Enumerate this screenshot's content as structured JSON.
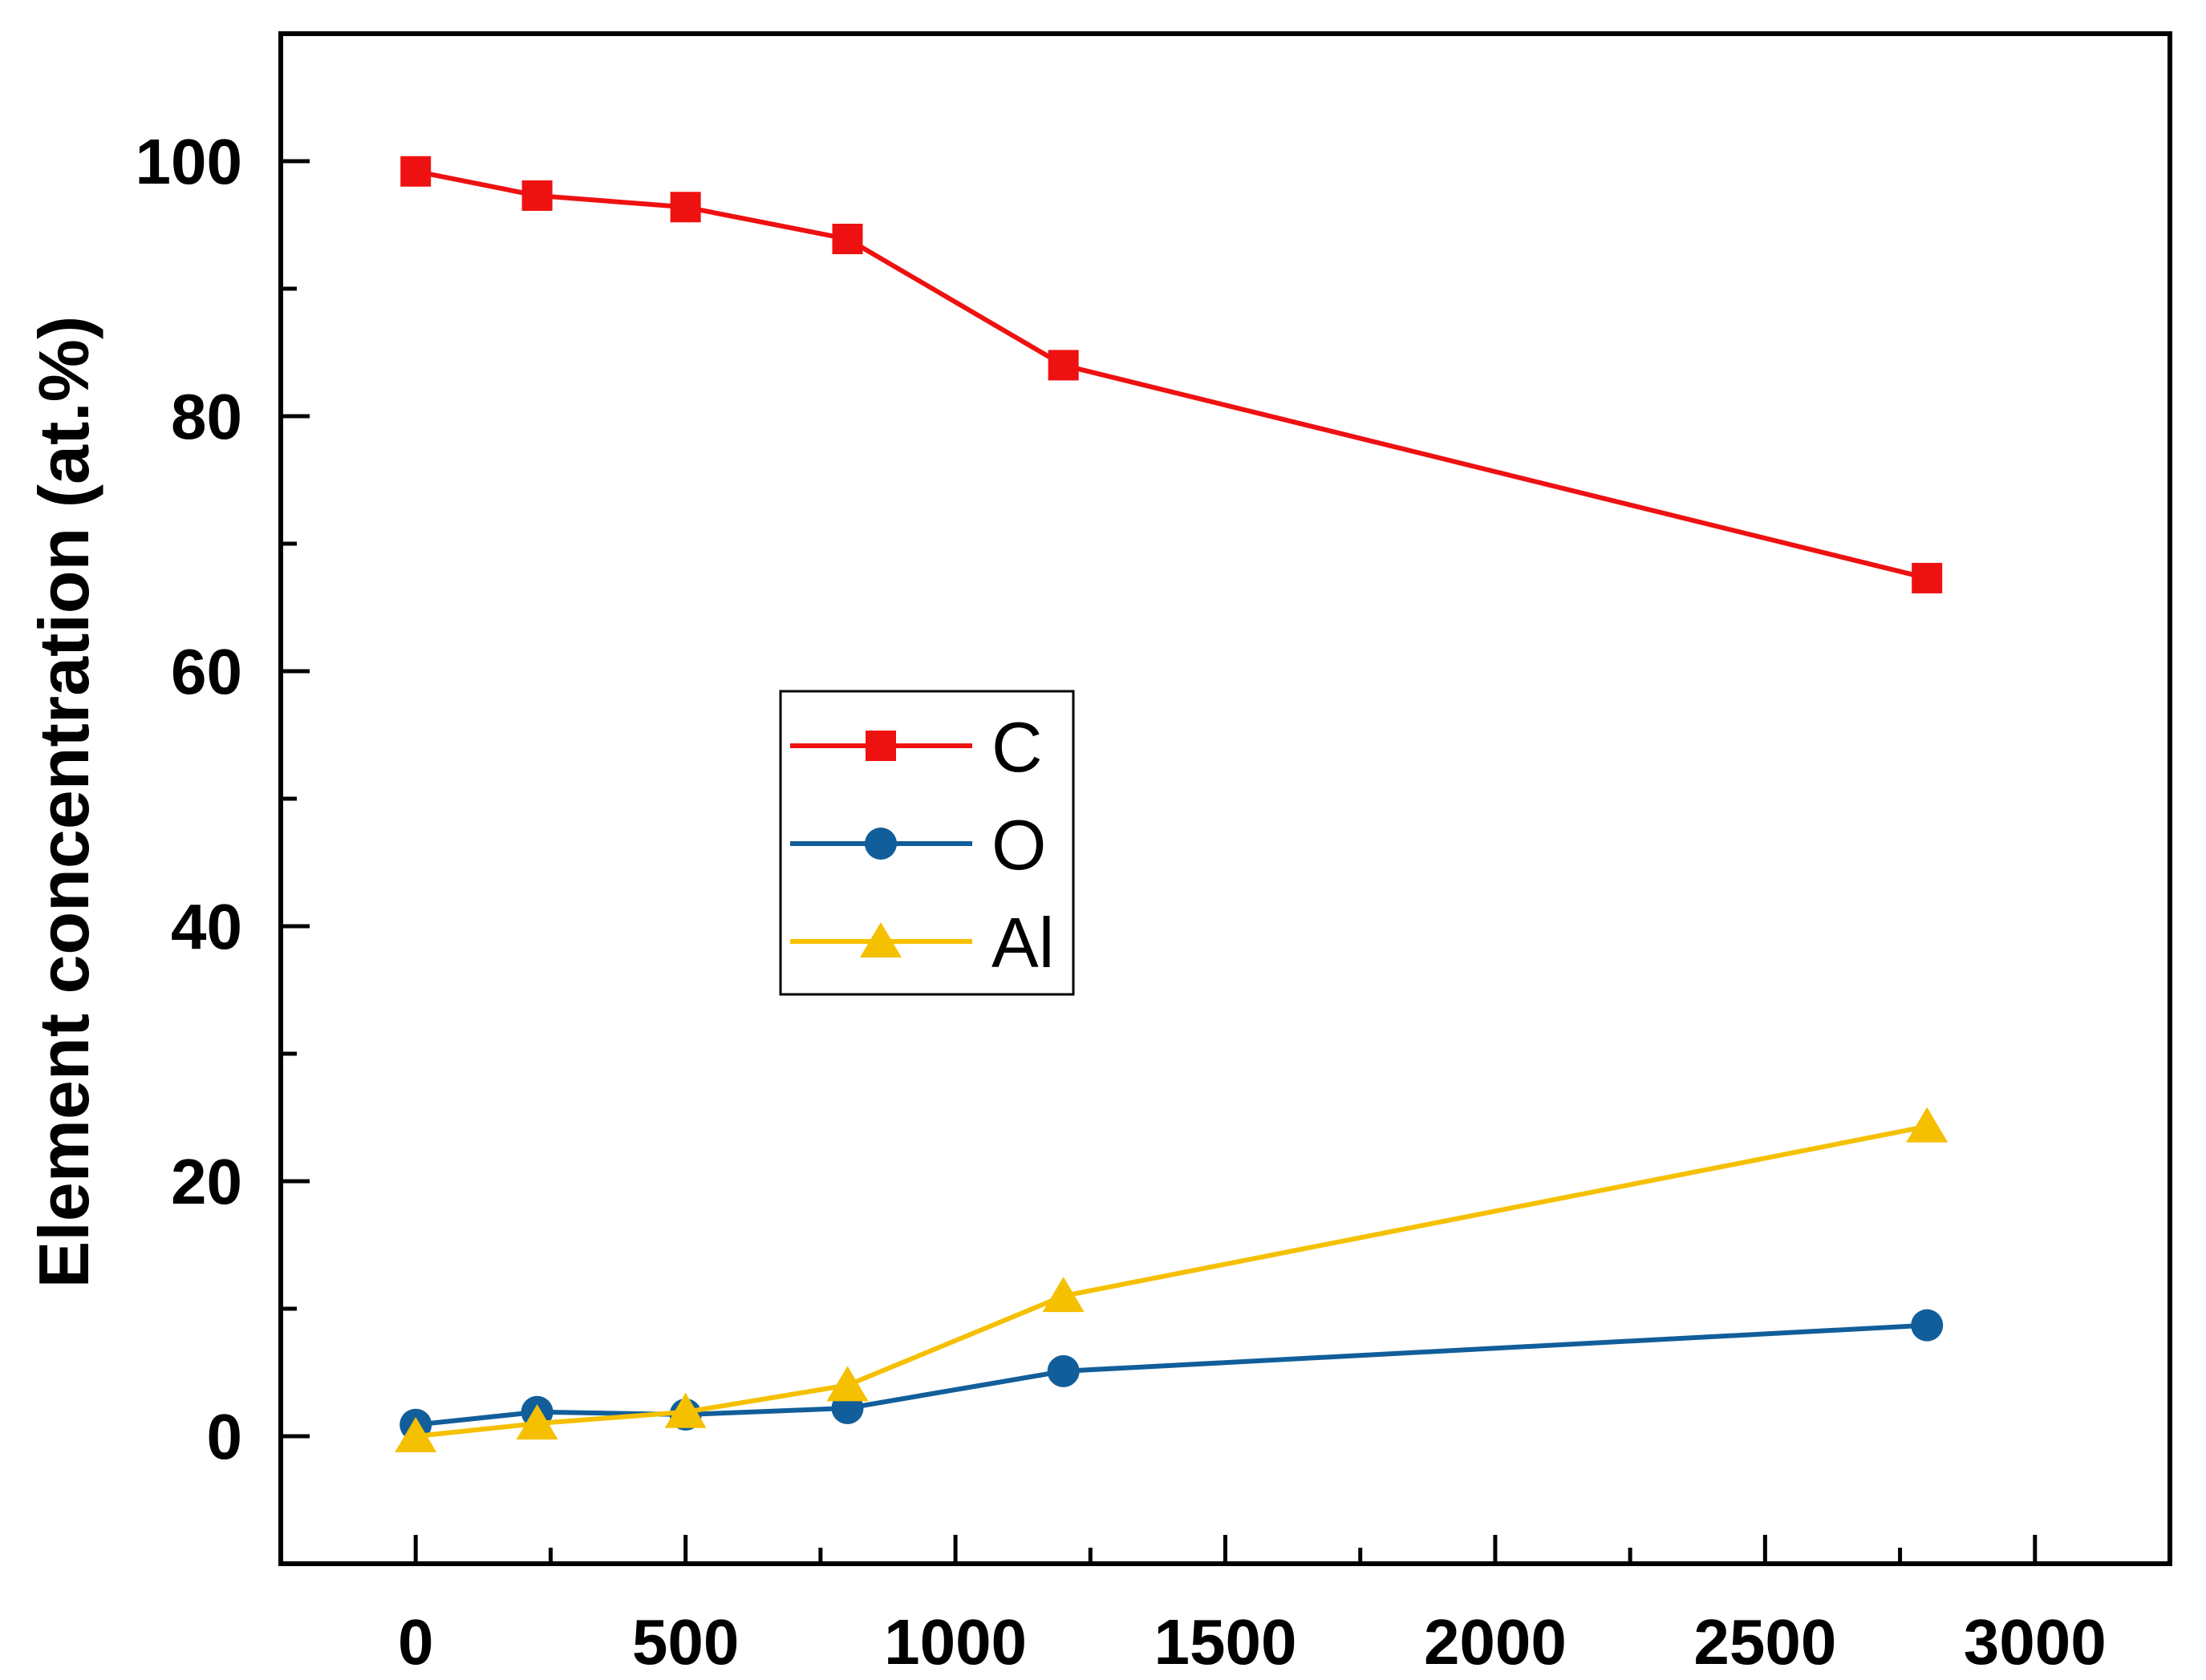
{
  "chart_data": {
    "type": "line",
    "title": "",
    "xlabel": "",
    "ylabel": "Element concentration (at.%)",
    "xlim": [
      -250,
      3250
    ],
    "ylim": [
      -10,
      110
    ],
    "x_ticks": [
      0,
      500,
      1000,
      1500,
      2000,
      2500,
      3000
    ],
    "x_tick_labels": [
      "0",
      "500",
      "1000",
      "1500",
      "2000",
      "2500",
      "3000"
    ],
    "y_ticks": [
      0,
      20,
      40,
      60,
      80,
      100
    ],
    "y_tick_labels": [
      "0",
      "20",
      "40",
      "60",
      "80",
      "100"
    ],
    "grid": false,
    "legend_position": "center-left",
    "series": [
      {
        "name": "C",
        "color": "#ee1111",
        "marker": "square",
        "x": [
          0,
          225,
          500,
          800,
          1200,
          2800
        ],
        "values": [
          99.2,
          97.3,
          96.4,
          93.9,
          84.0,
          67.3
        ]
      },
      {
        "name": "O",
        "color": "#115e9a",
        "marker": "circle",
        "x": [
          0,
          225,
          500,
          800,
          1200,
          2800
        ],
        "values": [
          0.9,
          1.9,
          1.7,
          2.2,
          5.1,
          8.7
        ]
      },
      {
        "name": "Al",
        "color": "#f5c000",
        "marker": "triangle",
        "x": [
          0,
          225,
          500,
          800,
          1200,
          2800
        ],
        "values": [
          0.0,
          1.0,
          1.9,
          4.0,
          11.0,
          24.3
        ]
      }
    ]
  }
}
